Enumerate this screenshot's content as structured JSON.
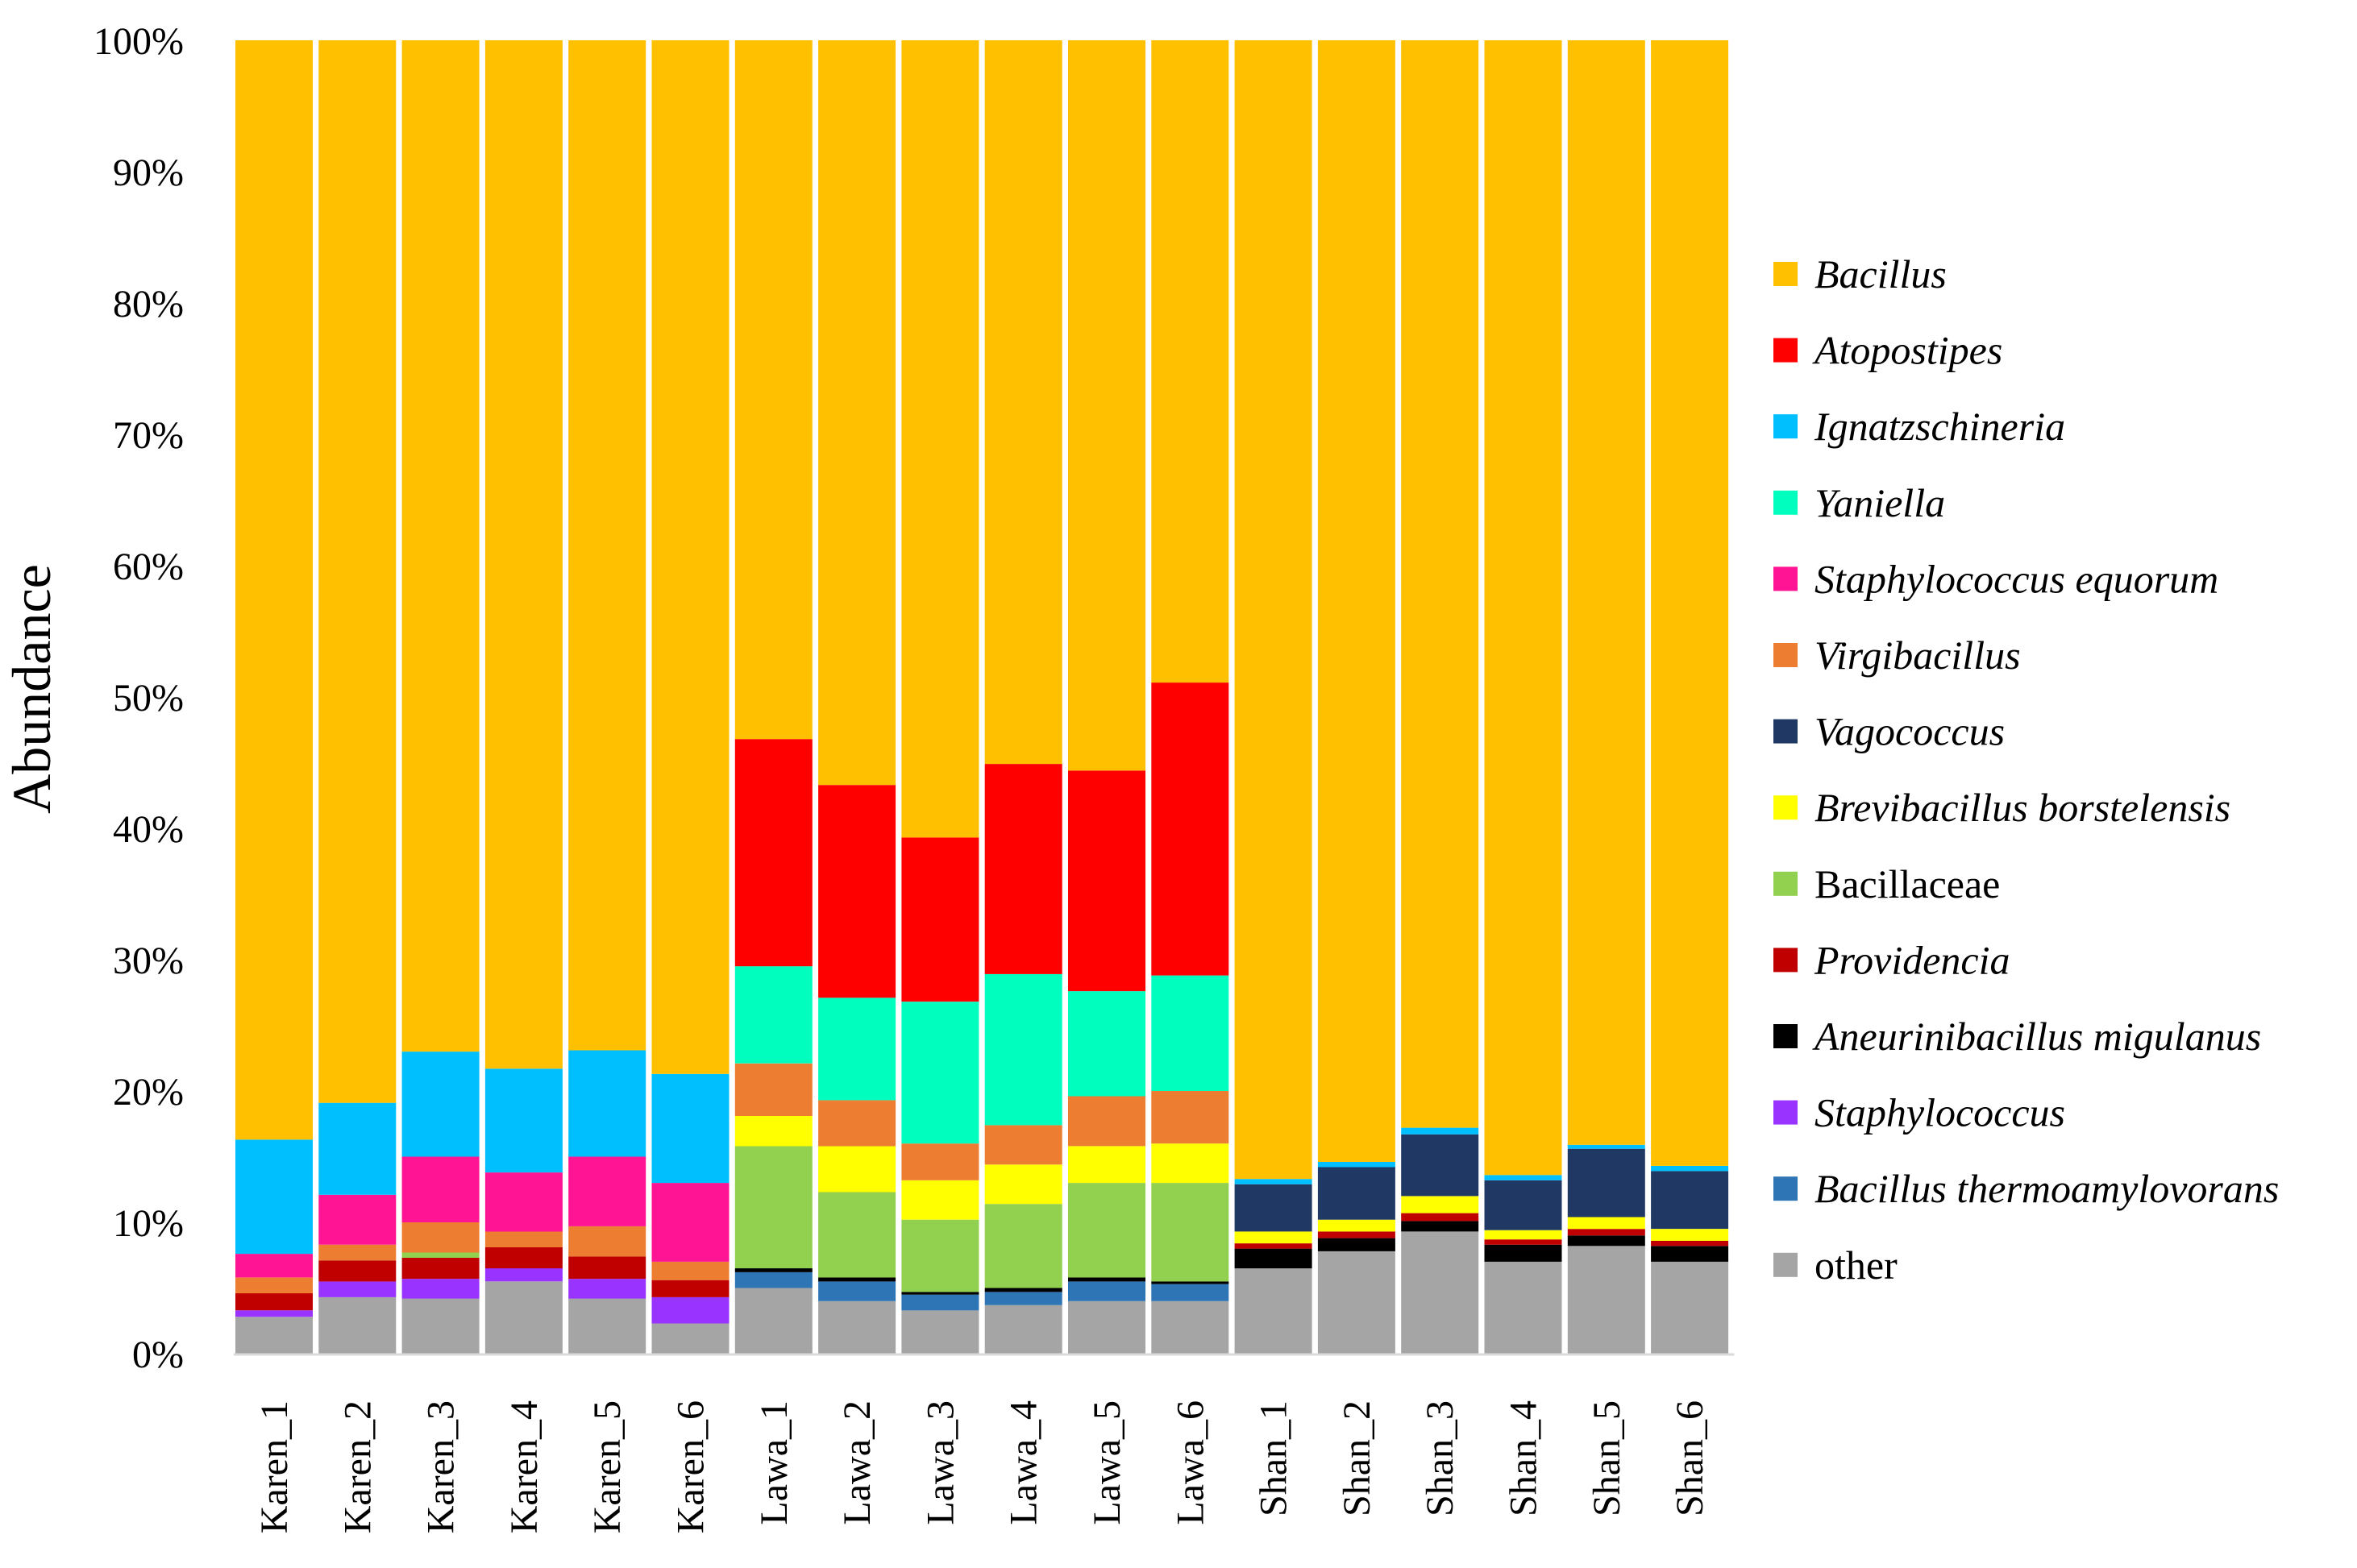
{
  "chart_data": {
    "type": "bar",
    "stacked": true,
    "normalized": true,
    "title": "",
    "xlabel": "",
    "ylabel": "Abundance",
    "ylim": [
      0,
      100
    ],
    "yticks": [
      "0%",
      "10%",
      "20%",
      "30%",
      "40%",
      "50%",
      "60%",
      "70%",
      "80%",
      "90%",
      "100%"
    ],
    "categories": [
      "Karen_1",
      "Karen_2",
      "Karen_3",
      "Karen_4",
      "Karen_5",
      "Karen_6",
      "Lawa_1",
      "Lawa_2",
      "Lawa_3",
      "Lawa_4",
      "Lawa_5",
      "Lawa_6",
      "Shan_1",
      "Shan_2",
      "Shan_3",
      "Shan_4",
      "Shan_5",
      "Shan_6"
    ],
    "legend_position": "right",
    "series": [
      {
        "name": "other",
        "italic": false,
        "color": "#A5A5A5",
        "values": [
          2.8,
          4.3,
          4.2,
          5.5,
          4.2,
          2.3,
          5.0,
          4.0,
          3.3,
          3.7,
          4.0,
          4.0,
          6.5,
          7.8,
          9.3,
          7.0,
          8.2,
          7.0
        ]
      },
      {
        "name": "Bacillus thermoamylovorans",
        "italic": true,
        "color": "#2E75B6",
        "values": [
          0.0,
          0.0,
          0.0,
          0.0,
          0.0,
          0.0,
          1.2,
          1.5,
          1.2,
          1.0,
          1.5,
          1.3,
          0.0,
          0.0,
          0.0,
          0.0,
          0.0,
          0.0
        ]
      },
      {
        "name": "Staphylococcus",
        "italic": true,
        "color": "#9933FF",
        "values": [
          0.5,
          1.2,
          1.5,
          1.0,
          1.5,
          2.0,
          0.0,
          0.0,
          0.0,
          0.0,
          0.0,
          0.0,
          0.0,
          0.0,
          0.0,
          0.0,
          0.0,
          0.0
        ]
      },
      {
        "name": "Aneurinibacillus migulanus",
        "italic": true,
        "color": "#000000",
        "values": [
          0.0,
          0.0,
          0.0,
          0.0,
          0.0,
          0.0,
          0.3,
          0.3,
          0.2,
          0.3,
          0.3,
          0.2,
          1.5,
          1.0,
          0.8,
          1.3,
          0.8,
          1.2
        ]
      },
      {
        "name": "Providencia",
        "italic": true,
        "color": "#C00000",
        "values": [
          1.3,
          1.6,
          1.6,
          1.6,
          1.7,
          1.3,
          0.0,
          0.0,
          0.0,
          0.0,
          0.0,
          0.0,
          0.4,
          0.5,
          0.6,
          0.4,
          0.5,
          0.4
        ]
      },
      {
        "name": "Bacillaceae",
        "italic": false,
        "color": "#92D050",
        "values": [
          0.0,
          0.0,
          0.4,
          0.0,
          0.0,
          0.0,
          9.3,
          6.5,
          5.5,
          6.4,
          7.2,
          7.5,
          0.0,
          0.0,
          0.0,
          0.0,
          0.0,
          0.0
        ]
      },
      {
        "name": "Brevibacillus borstelensis",
        "italic": true,
        "color": "#FFFF00",
        "values": [
          0.0,
          0.0,
          0.0,
          0.0,
          0.0,
          0.0,
          2.3,
          3.5,
          3.0,
          3.0,
          2.8,
          3.0,
          0.9,
          0.9,
          1.3,
          0.7,
          0.9,
          0.9
        ]
      },
      {
        "name": "Vagococcus",
        "italic": true,
        "color": "#203864",
        "values": [
          0.0,
          0.0,
          0.0,
          0.0,
          0.0,
          0.0,
          0.0,
          0.0,
          0.0,
          0.0,
          0.0,
          0.0,
          3.6,
          4.0,
          4.7,
          3.8,
          5.2,
          4.4
        ]
      },
      {
        "name": "Virgibacillus",
        "italic": true,
        "color": "#ED7D31",
        "values": [
          1.2,
          1.2,
          2.3,
          1.2,
          2.3,
          1.4,
          4.0,
          3.5,
          2.8,
          3.0,
          3.8,
          4.0,
          0.0,
          0.0,
          0.0,
          0.0,
          0.0,
          0.0
        ]
      },
      {
        "name": "Staphylococcus equorum",
        "italic": true,
        "color": "#FF1493",
        "values": [
          1.8,
          3.8,
          5.0,
          4.5,
          5.3,
          6.0,
          0.0,
          0.0,
          0.0,
          0.0,
          0.0,
          0.0,
          0.0,
          0.0,
          0.0,
          0.0,
          0.0,
          0.0
        ]
      },
      {
        "name": "Yaniella",
        "italic": true,
        "color": "#00FFBF",
        "values": [
          0.0,
          0.0,
          0.0,
          0.0,
          0.0,
          0.0,
          7.4,
          7.8,
          10.8,
          11.5,
          8.0,
          8.8,
          0.0,
          0.0,
          0.0,
          0.0,
          0.0,
          0.0
        ]
      },
      {
        "name": "Atopostipes",
        "italic": true,
        "color": "#FF0000",
        "values": [
          0.0,
          0.0,
          0.0,
          0.0,
          0.0,
          0.0,
          17.3,
          16.2,
          12.5,
          16.0,
          16.8,
          22.3,
          0.0,
          0.0,
          0.0,
          0.0,
          0.0,
          0.0
        ]
      },
      {
        "name": "Ignatzschineria",
        "italic": true,
        "color": "#00BFFF",
        "values": [
          8.7,
          7.0,
          8.0,
          7.9,
          8.1,
          8.3,
          0.0,
          0.0,
          0.0,
          0.0,
          0.0,
          0.0,
          0.4,
          0.4,
          0.5,
          0.4,
          0.3,
          0.4
        ]
      },
      {
        "name": "Bacillus",
        "italic": true,
        "color": "#FFC000",
        "values": [
          83.7,
          80.9,
          77.0,
          78.3,
          76.9,
          78.7,
          53.2,
          56.7,
          60.7,
          55.1,
          55.6,
          48.9,
          86.7,
          85.4,
          82.8,
          86.4,
          84.1,
          85.7
        ]
      }
    ],
    "legend_order": [
      "Bacillus",
      "Atopostipes",
      "Ignatzschineria",
      "Yaniella",
      "Staphylococcus equorum",
      "Virgibacillus",
      "Vagococcus",
      "Brevibacillus borstelensis",
      "Bacillaceae",
      "Providencia",
      "Aneurinibacillus migulanus",
      "Staphylococcus",
      "Bacillus thermoamylovorans",
      "other"
    ]
  }
}
